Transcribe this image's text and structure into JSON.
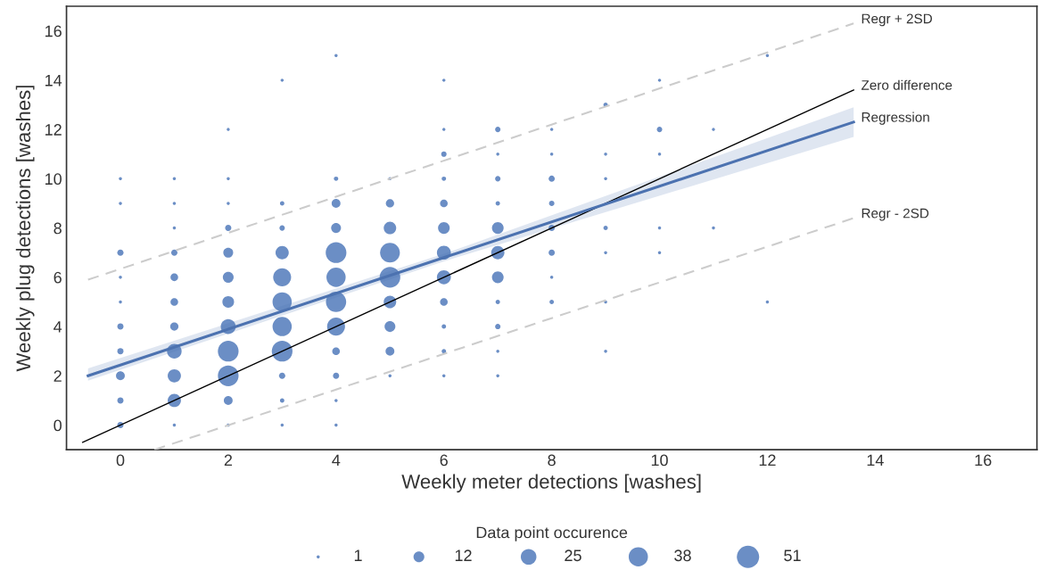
{
  "chart_data": {
    "type": "bubble",
    "xlabel": "Weekly meter detections [washes]",
    "ylabel": "Weekly plug detections [washes]",
    "legend_title": "Data point occurence",
    "grid": false,
    "xlim": [
      -1,
      17
    ],
    "ylim": [
      -1,
      17
    ],
    "xticks": [
      0,
      2,
      4,
      6,
      8,
      10,
      12,
      14,
      16
    ],
    "yticks": [
      0,
      2,
      4,
      6,
      8,
      10,
      12,
      14,
      16
    ],
    "size_legend": [
      1,
      12,
      25,
      38,
      51
    ],
    "series": [
      {
        "type": "bubble",
        "color": "#6b8ec5",
        "marker": "circle",
        "x": [
          0,
          0,
          0,
          0,
          0,
          0,
          0,
          0,
          0,
          0,
          1,
          1,
          1,
          1,
          1,
          1,
          1,
          1,
          1,
          1,
          1,
          2,
          2,
          2,
          2,
          2,
          2,
          2,
          2,
          2,
          2,
          2,
          2,
          3,
          3,
          3,
          3,
          3,
          3,
          3,
          3,
          3,
          3,
          3,
          4,
          4,
          4,
          4,
          4,
          4,
          4,
          4,
          4,
          4,
          4,
          4,
          5,
          5,
          5,
          5,
          5,
          5,
          5,
          5,
          5,
          6,
          6,
          6,
          6,
          6,
          6,
          6,
          6,
          6,
          6,
          6,
          6,
          7,
          7,
          7,
          7,
          7,
          7,
          7,
          7,
          7,
          7,
          7,
          8,
          8,
          8,
          8,
          8,
          8,
          8,
          8,
          9,
          9,
          9,
          9,
          9,
          9,
          9,
          10,
          10,
          10,
          10,
          10,
          11,
          11,
          12,
          12
        ],
        "values": [
          0,
          1,
          2,
          3,
          4,
          5,
          6,
          7,
          9,
          10,
          0,
          1,
          2,
          3,
          4,
          5,
          6,
          7,
          8,
          9,
          10,
          0,
          1,
          2,
          3,
          4,
          5,
          6,
          7,
          8,
          9,
          10,
          12,
          0,
          1,
          2,
          3,
          4,
          5,
          6,
          7,
          8,
          9,
          14,
          0,
          1,
          2,
          3,
          4,
          5,
          6,
          7,
          8,
          9,
          10,
          15,
          2,
          3,
          4,
          5,
          6,
          7,
          8,
          9,
          10,
          2,
          3,
          4,
          5,
          6,
          7,
          8,
          9,
          10,
          11,
          12,
          14,
          2,
          3,
          4,
          5,
          6,
          7,
          8,
          9,
          10,
          11,
          12,
          5,
          6,
          7,
          8,
          9,
          10,
          11,
          12,
          3,
          5,
          7,
          8,
          10,
          11,
          13,
          7,
          8,
          11,
          12,
          14,
          8,
          12,
          5,
          15
        ],
        "sizes": [
          4,
          4,
          8,
          4,
          4,
          1,
          1,
          4,
          1,
          1,
          1,
          18,
          18,
          22,
          7,
          6,
          6,
          4,
          1,
          1,
          1,
          1,
          8,
          44,
          44,
          23,
          14,
          12,
          10,
          4,
          1,
          1,
          1,
          1,
          2,
          4,
          44,
          38,
          38,
          33,
          18,
          3,
          2,
          1,
          1,
          1,
          4,
          6,
          33,
          42,
          38,
          44,
          10,
          8,
          2,
          1,
          1,
          8,
          12,
          16,
          44,
          40,
          16,
          7,
          1,
          1,
          2,
          2,
          6,
          20,
          20,
          14,
          6,
          2,
          3,
          1,
          1,
          1,
          1,
          3,
          2,
          14,
          18,
          14,
          2,
          3,
          1,
          3,
          2,
          1,
          4,
          4,
          3,
          4,
          1,
          1,
          1,
          1,
          1,
          2,
          1,
          1,
          2,
          1,
          1,
          1,
          3,
          1,
          1,
          1,
          1,
          1
        ]
      },
      {
        "type": "line",
        "name": "Regr + 2SD",
        "color": "#cccccc",
        "line_style": "dashed",
        "x": [
          -0.6,
          13.6
        ],
        "values": [
          5.9,
          16.3
        ]
      },
      {
        "type": "line",
        "name": "Zero difference",
        "color": "#000000",
        "line_style": "solid",
        "x": [
          -0.7,
          13.6
        ],
        "values": [
          -0.7,
          13.6
        ]
      },
      {
        "type": "line",
        "name": "Regression",
        "color": "#4c72b0",
        "line_style": "solid",
        "x": [
          -0.6,
          6,
          13.6
        ],
        "values": [
          2.0,
          6.8,
          12.3
        ],
        "lower": [
          1.8,
          6.65,
          11.7
        ],
        "upper": [
          2.3,
          6.95,
          12.9
        ]
      },
      {
        "type": "line",
        "name": "Regr - 2SD",
        "color": "#cccccc",
        "line_style": "dashed",
        "x": [
          0.63,
          13.6
        ],
        "values": [
          -1,
          8.4
        ]
      }
    ]
  }
}
